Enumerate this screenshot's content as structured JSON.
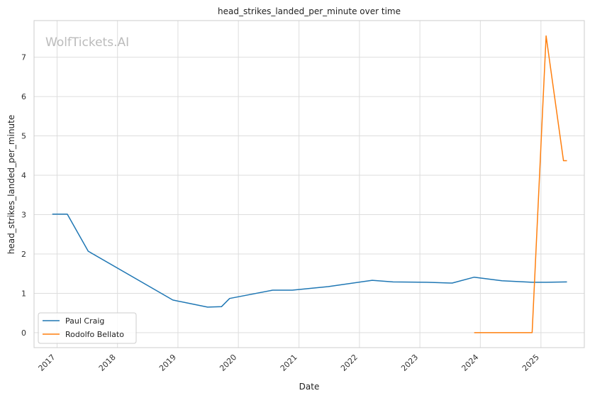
{
  "chart_data": {
    "type": "line",
    "title": "head_strikes_landed_per_minute over time",
    "xlabel": "Date",
    "ylabel": "head_strikes_landed_per_minute",
    "watermark": "WolfTickets.AI",
    "x_axis_type": "date",
    "xlim": [
      "2016-08-15",
      "2025-09-20"
    ],
    "ylim": [
      -0.38,
      7.93
    ],
    "x_ticks": [
      "2017",
      "2018",
      "2019",
      "2020",
      "2021",
      "2022",
      "2023",
      "2024",
      "2025"
    ],
    "y_ticks": [
      0,
      1,
      2,
      3,
      4,
      5,
      6,
      7
    ],
    "grid": true,
    "legend_position": "lower-left",
    "series": [
      {
        "name": "Paul Craig",
        "color": "#1f77b4",
        "points": [
          {
            "x": "2016-12-03",
            "y": 3.01
          },
          {
            "x": "2017-03-04",
            "y": 3.01
          },
          {
            "x": "2017-07-08",
            "y": 2.07
          },
          {
            "x": "2018-12-01",
            "y": 0.83
          },
          {
            "x": "2019-03-16",
            "y": 0.74
          },
          {
            "x": "2019-06-29",
            "y": 0.65
          },
          {
            "x": "2019-09-21",
            "y": 0.66
          },
          {
            "x": "2019-11-09",
            "y": 0.87
          },
          {
            "x": "2020-07-26",
            "y": 1.08
          },
          {
            "x": "2020-11-21",
            "y": 1.08
          },
          {
            "x": "2021-06-26",
            "y": 1.17
          },
          {
            "x": "2022-03-19",
            "y": 1.33
          },
          {
            "x": "2022-07-23",
            "y": 1.29
          },
          {
            "x": "2023-02-11",
            "y": 1.28
          },
          {
            "x": "2023-07-15",
            "y": 1.26
          },
          {
            "x": "2023-11-25",
            "y": 1.41
          },
          {
            "x": "2024-05-11",
            "y": 1.32
          },
          {
            "x": "2024-11-09",
            "y": 1.28
          },
          {
            "x": "2025-02-01",
            "y": 1.28
          },
          {
            "x": "2025-06-07",
            "y": 1.29
          }
        ]
      },
      {
        "name": "Rodolfo Bellato",
        "color": "#ff7f0e",
        "points": [
          {
            "x": "2023-11-25",
            "y": 0.0
          },
          {
            "x": "2024-11-09",
            "y": 0.0
          },
          {
            "x": "2025-02-01",
            "y": 7.54
          },
          {
            "x": "2025-05-17",
            "y": 4.37
          },
          {
            "x": "2025-06-07",
            "y": 4.37
          }
        ]
      }
    ]
  }
}
